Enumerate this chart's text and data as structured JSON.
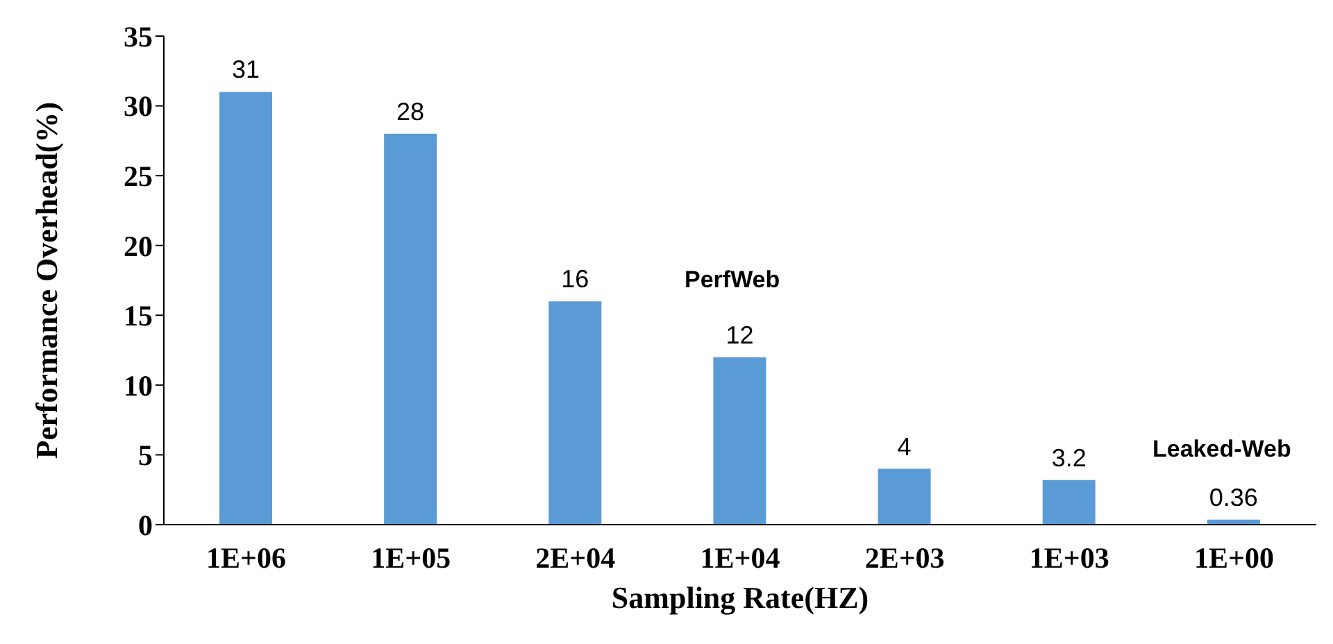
{
  "chart_data": {
    "type": "bar",
    "xlabel": "Sampling Rate(HZ)",
    "ylabel": "Performance Overhead(%)",
    "categories": [
      "1E+06",
      "1E+05",
      "2E+04",
      "1E+04",
      "2E+03",
      "1E+03",
      "1E+00"
    ],
    "values": [
      31,
      28,
      16,
      12,
      4,
      3.2,
      0.36
    ],
    "color": "#5b9bd5",
    "ylim": [
      0,
      35
    ],
    "yticks": [
      0,
      5,
      10,
      15,
      20,
      25,
      30,
      35
    ],
    "grid": false,
    "data_labels": true,
    "annotations": [
      "PerfWeb",
      "Leaked-Web"
    ]
  }
}
